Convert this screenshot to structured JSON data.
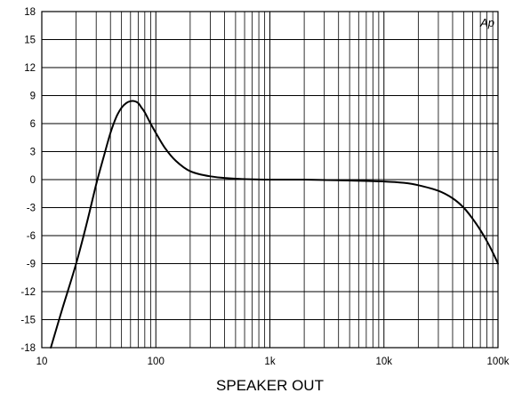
{
  "chart_data": {
    "type": "line",
    "title": "",
    "xlabel": "SPEAKER OUT",
    "ylabel": "",
    "x_scale": "log",
    "xlim": [
      10,
      100000
    ],
    "ylim": [
      -18,
      18
    ],
    "grid": true,
    "x_ticks": [
      {
        "value": 10,
        "label": "10"
      },
      {
        "value": 100,
        "label": "100"
      },
      {
        "value": 1000,
        "label": "1k"
      },
      {
        "value": 10000,
        "label": "10k"
      },
      {
        "value": 100000,
        "label": "100k"
      }
    ],
    "y_ticks": [
      18,
      15,
      12,
      9,
      6,
      3,
      0,
      -3,
      -6,
      -9,
      -12,
      -15,
      -18
    ],
    "logo": "Ap",
    "series": [
      {
        "color": "#000000",
        "x": [
          12,
          15,
          20,
          25,
          30,
          35,
          40,
          45,
          50,
          55,
          60,
          65,
          70,
          75,
          80,
          90,
          100,
          120,
          150,
          200,
          300,
          500,
          1000,
          2000,
          5000,
          10000,
          15000,
          20000,
          30000,
          40000,
          50000,
          60000,
          70000,
          80000,
          90000,
          100000
        ],
        "y": [
          -18,
          -14,
          -9,
          -4.5,
          -0.5,
          2.5,
          5,
          6.7,
          7.7,
          8.2,
          8.4,
          8.4,
          8.2,
          7.7,
          7.2,
          6.0,
          5.0,
          3.4,
          2.0,
          0.9,
          0.35,
          0.1,
          0.0,
          0.0,
          -0.1,
          -0.2,
          -0.35,
          -0.6,
          -1.2,
          -2.0,
          -3.0,
          -4.2,
          -5.4,
          -6.6,
          -7.8,
          -9.0
        ]
      }
    ]
  }
}
